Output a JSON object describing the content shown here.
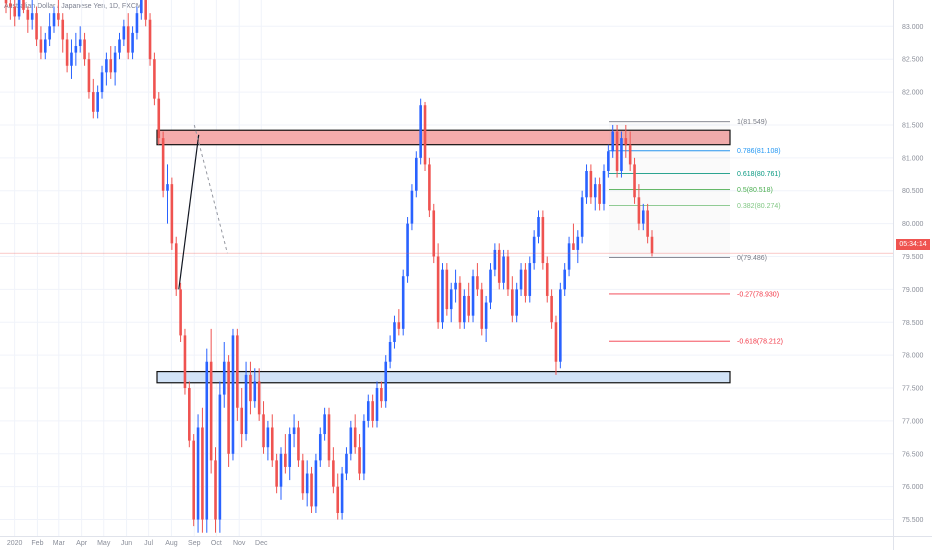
{
  "header": {
    "symbol_text": "Australian Dollar / Japanese Yen, 1D, FXCM"
  },
  "price_tag": {
    "time": "05:34:14",
    "value": 79.55
  },
  "colors": {
    "up": "#2962ff",
    "down": "#ef5350",
    "resistance_zone": "#f4a8a8",
    "support_zone": "#cfe0f5"
  },
  "chart_data": {
    "type": "candlestick",
    "ylim": [
      75.25,
      83.4
    ],
    "y_ticks": [
      "75.500",
      "76.000",
      "76.500",
      "77.000",
      "77.500",
      "78.000",
      "78.500",
      "79.000",
      "79.500",
      "80.000",
      "80.500",
      "81.000",
      "81.500",
      "82.000",
      "82.500",
      "83.000"
    ],
    "x_ticks": [
      "2020",
      "Feb",
      "Mar",
      "Apr",
      "May",
      "Jun",
      "Jul",
      "Aug",
      "Sep",
      "Oct",
      "Nov",
      "Dec"
    ],
    "zones": [
      {
        "name": "resistance",
        "from": 81.2,
        "to": 81.42
      },
      {
        "name": "support",
        "from": 77.58,
        "to": 77.75
      }
    ],
    "fibonacci": [
      {
        "label": "1(81.549)",
        "value": 81.549,
        "color": "#787b86"
      },
      {
        "label": "0.786(81.108)",
        "value": 81.108,
        "color": "#2196f3"
      },
      {
        "label": "0.618(80.761)",
        "value": 80.761,
        "color": "#089981"
      },
      {
        "label": "0.5(80.518)",
        "value": 80.518,
        "color": "#4caf50"
      },
      {
        "label": "0.382(80.274)",
        "value": 80.274,
        "color": "#81c784"
      },
      {
        "label": "0(79.486)",
        "value": 79.486,
        "color": "#787b86"
      },
      {
        "label": "-0.27(78.930)",
        "value": 78.93,
        "color": "#f23645"
      },
      {
        "label": "-0.618(78.212)",
        "value": 78.212,
        "color": "#f23645"
      }
    ],
    "trendline": {
      "from": {
        "date": "2020-08-11",
        "price": 79.0
      },
      "to": {
        "date": "2020-09-07",
        "price": 81.35
      }
    },
    "projection": {
      "from": {
        "date": "2020-09-01",
        "price": 81.5
      },
      "to": {
        "date": "2020-10-16",
        "price": 79.55
      }
    },
    "candles": [
      [
        83.6,
        83.8,
        83.2,
        83.35
      ],
      [
        83.35,
        83.5,
        83.1,
        83.3
      ],
      [
        83.3,
        83.55,
        83.0,
        83.15
      ],
      [
        83.15,
        83.5,
        83.1,
        83.4
      ],
      [
        83.4,
        83.6,
        83.2,
        83.25
      ],
      [
        83.25,
        83.3,
        82.9,
        83.1
      ],
      [
        83.1,
        83.4,
        82.95,
        83.2
      ],
      [
        83.2,
        83.3,
        82.7,
        82.8
      ],
      [
        82.8,
        83.0,
        82.5,
        82.6
      ],
      [
        82.6,
        82.9,
        82.5,
        82.8
      ],
      [
        82.8,
        83.2,
        82.7,
        83.0
      ],
      [
        83.0,
        83.3,
        82.9,
        83.2
      ],
      [
        83.2,
        83.4,
        83.0,
        83.1
      ],
      [
        83.1,
        83.2,
        82.6,
        82.8
      ],
      [
        82.8,
        82.9,
        82.3,
        82.4
      ],
      [
        82.4,
        82.8,
        82.2,
        82.6
      ],
      [
        82.6,
        82.9,
        82.4,
        82.7
      ],
      [
        82.7,
        83.0,
        82.6,
        82.8
      ],
      [
        82.8,
        82.9,
        82.4,
        82.5
      ],
      [
        82.5,
        82.6,
        81.9,
        82.0
      ],
      [
        82.0,
        82.2,
        81.6,
        81.7
      ],
      [
        81.7,
        82.1,
        81.6,
        82.0
      ],
      [
        82.0,
        82.4,
        81.9,
        82.3
      ],
      [
        82.3,
        82.6,
        82.1,
        82.5
      ],
      [
        82.5,
        82.7,
        82.2,
        82.3
      ],
      [
        82.3,
        82.7,
        82.1,
        82.6
      ],
      [
        82.6,
        82.9,
        82.5,
        82.8
      ],
      [
        82.8,
        83.1,
        82.7,
        83.0
      ],
      [
        83.0,
        83.2,
        82.5,
        82.6
      ],
      [
        82.6,
        83.0,
        82.5,
        82.9
      ],
      [
        82.9,
        83.3,
        82.8,
        83.2
      ],
      [
        83.2,
        83.6,
        83.1,
        83.5
      ],
      [
        83.5,
        83.6,
        83.0,
        83.1
      ],
      [
        83.1,
        83.2,
        82.4,
        82.5
      ],
      [
        82.5,
        82.6,
        81.8,
        81.9
      ],
      [
        81.9,
        82.0,
        81.2,
        81.3
      ],
      [
        81.3,
        81.4,
        80.4,
        80.5
      ],
      [
        80.5,
        80.9,
        80.0,
        80.6
      ],
      [
        80.6,
        80.7,
        79.6,
        79.7
      ],
      [
        79.7,
        79.8,
        78.9,
        79.0
      ],
      [
        79.0,
        79.1,
        78.2,
        78.3
      ],
      [
        78.3,
        78.4,
        77.4,
        77.5
      ],
      [
        77.5,
        77.6,
        76.6,
        76.7
      ],
      [
        76.7,
        76.8,
        75.4,
        75.5
      ],
      [
        75.5,
        77.1,
        75.3,
        76.9
      ],
      [
        76.9,
        77.2,
        75.3,
        75.5
      ],
      [
        75.5,
        78.1,
        75.3,
        77.9
      ],
      [
        77.9,
        78.4,
        76.2,
        76.4
      ],
      [
        76.4,
        76.6,
        75.3,
        75.5
      ],
      [
        75.5,
        77.6,
        75.3,
        77.4
      ],
      [
        77.4,
        78.2,
        77.2,
        77.9
      ],
      [
        77.9,
        78.0,
        76.3,
        76.5
      ],
      [
        76.5,
        78.4,
        76.4,
        78.3
      ],
      [
        78.3,
        78.4,
        77.0,
        77.2
      ],
      [
        77.2,
        77.5,
        76.6,
        76.8
      ],
      [
        76.8,
        77.9,
        76.7,
        77.7
      ],
      [
        77.7,
        77.9,
        77.1,
        77.3
      ],
      [
        77.3,
        77.8,
        77.2,
        77.6
      ],
      [
        77.6,
        77.8,
        77.0,
        77.1
      ],
      [
        77.1,
        77.3,
        76.5,
        76.6
      ],
      [
        76.6,
        77.0,
        76.4,
        76.9
      ],
      [
        76.9,
        77.1,
        76.3,
        76.4
      ],
      [
        76.4,
        76.5,
        75.9,
        76.0
      ],
      [
        76.0,
        76.6,
        75.8,
        76.5
      ],
      [
        76.5,
        76.8,
        76.2,
        76.3
      ],
      [
        76.3,
        76.9,
        76.1,
        76.8
      ],
      [
        76.8,
        77.1,
        76.6,
        76.9
      ],
      [
        76.9,
        77.0,
        76.3,
        76.4
      ],
      [
        76.4,
        76.5,
        75.8,
        75.9
      ],
      [
        75.9,
        76.4,
        75.7,
        76.2
      ],
      [
        76.2,
        76.3,
        75.6,
        75.7
      ],
      [
        75.7,
        76.5,
        75.6,
        76.4
      ],
      [
        76.4,
        76.9,
        76.3,
        76.8
      ],
      [
        76.8,
        77.2,
        76.7,
        77.1
      ],
      [
        77.1,
        77.2,
        76.3,
        76.4
      ],
      [
        76.4,
        76.6,
        75.9,
        76.0
      ],
      [
        76.0,
        76.2,
        75.5,
        75.6
      ],
      [
        75.6,
        76.3,
        75.5,
        76.2
      ],
      [
        76.2,
        76.6,
        76.1,
        76.5
      ],
      [
        76.5,
        77.0,
        76.4,
        76.9
      ],
      [
        76.9,
        77.1,
        76.5,
        76.6
      ],
      [
        76.6,
        76.8,
        76.1,
        76.2
      ],
      [
        76.2,
        77.1,
        76.1,
        77.0
      ],
      [
        77.0,
        77.4,
        76.9,
        77.3
      ],
      [
        77.3,
        77.4,
        76.9,
        77.0
      ],
      [
        77.0,
        77.6,
        76.9,
        77.5
      ],
      [
        77.5,
        77.6,
        77.2,
        77.3
      ],
      [
        77.3,
        78.0,
        77.2,
        77.9
      ],
      [
        77.9,
        78.3,
        77.8,
        78.2
      ],
      [
        78.2,
        78.6,
        78.1,
        78.5
      ],
      [
        78.5,
        78.7,
        78.3,
        78.4
      ],
      [
        78.4,
        79.3,
        78.3,
        79.2
      ],
      [
        79.2,
        80.1,
        79.1,
        80.0
      ],
      [
        80.0,
        80.6,
        79.9,
        80.5
      ],
      [
        80.5,
        81.1,
        80.4,
        81.0
      ],
      [
        81.0,
        81.9,
        80.9,
        81.8
      ],
      [
        81.8,
        81.85,
        80.8,
        80.9
      ],
      [
        80.9,
        81.0,
        80.1,
        80.2
      ],
      [
        80.2,
        80.3,
        79.4,
        79.5
      ],
      [
        79.5,
        79.7,
        78.4,
        78.5
      ],
      [
        78.5,
        79.4,
        78.4,
        79.3
      ],
      [
        79.3,
        79.4,
        78.6,
        78.7
      ],
      [
        78.7,
        79.1,
        78.5,
        79.0
      ],
      [
        79.0,
        79.3,
        78.8,
        79.1
      ],
      [
        79.1,
        79.2,
        78.4,
        78.5
      ],
      [
        78.5,
        79.0,
        78.4,
        78.9
      ],
      [
        78.9,
        79.1,
        78.5,
        78.6
      ],
      [
        78.6,
        79.3,
        78.5,
        79.2
      ],
      [
        79.2,
        79.4,
        78.9,
        79.0
      ],
      [
        79.0,
        79.1,
        78.3,
        78.4
      ],
      [
        78.4,
        78.9,
        78.2,
        78.8
      ],
      [
        78.8,
        79.4,
        78.7,
        79.3
      ],
      [
        79.3,
        79.7,
        79.2,
        79.6
      ],
      [
        79.6,
        79.7,
        79.0,
        79.1
      ],
      [
        79.1,
        79.6,
        79.0,
        79.5
      ],
      [
        79.5,
        79.6,
        78.9,
        79.0
      ],
      [
        79.0,
        79.2,
        78.5,
        78.6
      ],
      [
        78.6,
        79.1,
        78.5,
        79.0
      ],
      [
        79.0,
        79.4,
        78.9,
        79.3
      ],
      [
        79.3,
        79.4,
        78.8,
        78.9
      ],
      [
        78.9,
        79.5,
        78.8,
        79.4
      ],
      [
        79.4,
        79.9,
        79.3,
        79.8
      ],
      [
        79.8,
        80.2,
        79.7,
        80.1
      ],
      [
        80.1,
        80.2,
        79.3,
        79.4
      ],
      [
        79.4,
        79.5,
        78.8,
        78.9
      ],
      [
        78.9,
        79.0,
        78.4,
        78.5
      ],
      [
        78.5,
        78.6,
        77.7,
        77.9
      ],
      [
        77.9,
        79.1,
        77.8,
        79.0
      ],
      [
        79.0,
        79.4,
        78.9,
        79.3
      ],
      [
        79.3,
        79.8,
        79.2,
        79.7
      ],
      [
        79.7,
        80.0,
        79.6,
        79.6
      ],
      [
        79.6,
        79.9,
        79.4,
        79.8
      ],
      [
        79.8,
        80.5,
        79.7,
        80.4
      ],
      [
        80.4,
        80.9,
        80.3,
        80.8
      ],
      [
        80.8,
        80.9,
        80.3,
        80.4
      ],
      [
        80.4,
        80.7,
        80.2,
        80.6
      ],
      [
        80.6,
        80.7,
        80.2,
        80.3
      ],
      [
        80.3,
        80.9,
        80.2,
        80.8
      ],
      [
        80.8,
        81.2,
        80.7,
        81.1
      ],
      [
        81.1,
        81.5,
        81.0,
        81.4
      ],
      [
        81.4,
        81.5,
        80.7,
        80.8
      ],
      [
        80.8,
        81.4,
        80.7,
        81.3
      ],
      [
        81.3,
        81.5,
        81.0,
        81.2
      ],
      [
        81.2,
        81.4,
        80.8,
        80.9
      ],
      [
        80.9,
        81.0,
        80.3,
        80.4
      ],
      [
        80.4,
        80.6,
        79.9,
        80.0
      ],
      [
        80.0,
        80.3,
        79.9,
        80.2
      ],
      [
        80.2,
        80.3,
        79.7,
        79.8
      ],
      [
        79.8,
        79.9,
        79.5,
        79.55
      ]
    ]
  }
}
